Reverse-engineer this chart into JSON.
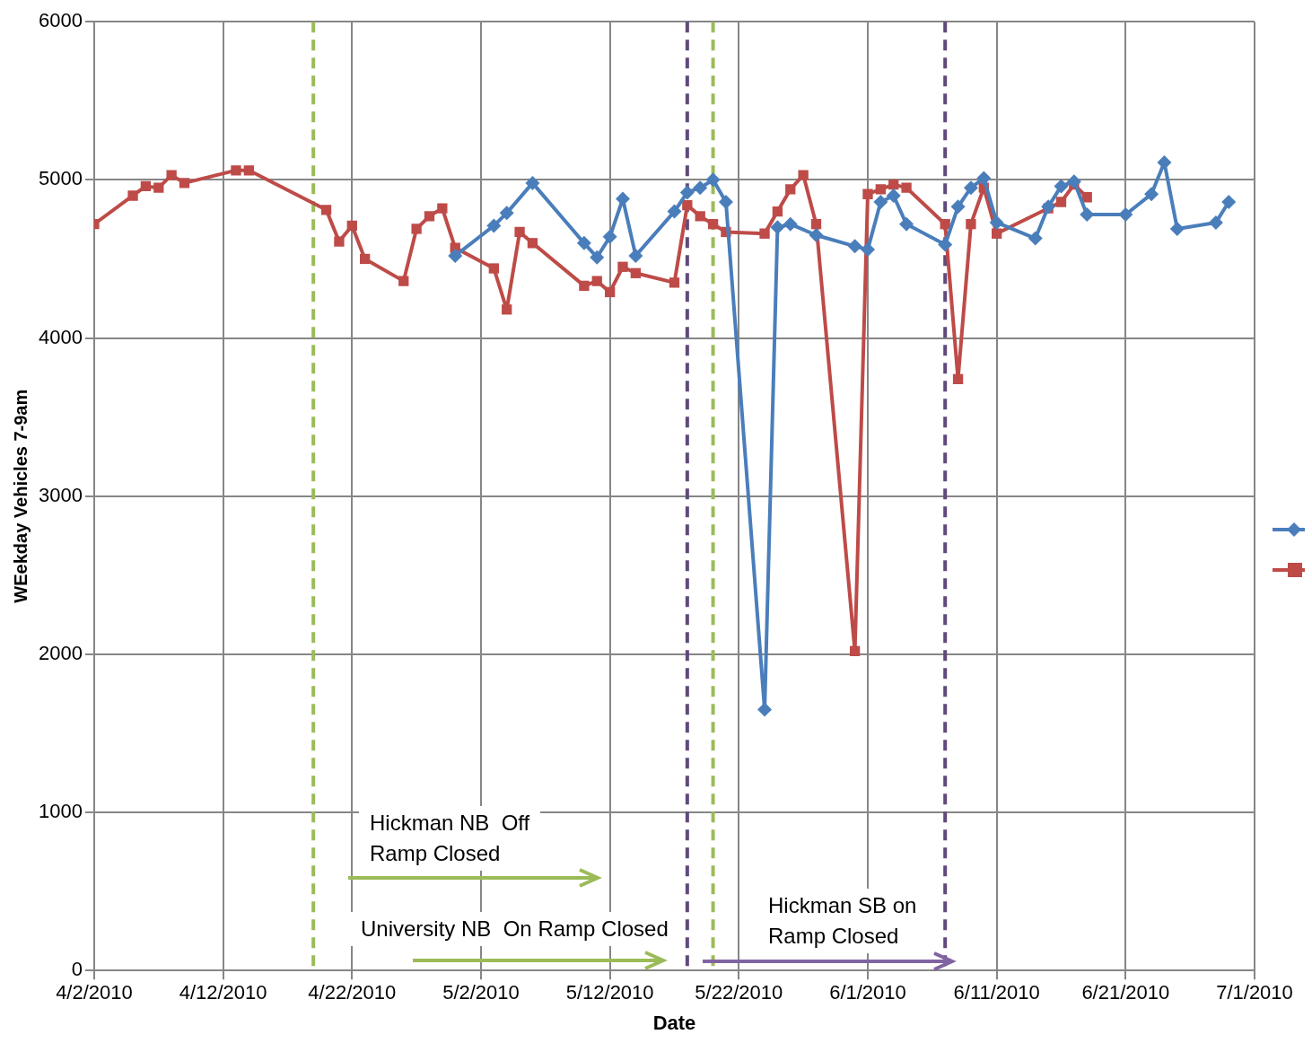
{
  "chart_data": {
    "type": "line",
    "ylabel": "WEekday Vehicles 7-9am",
    "xlabel": "Date",
    "xlim": [
      "2010-04-02",
      "2010-07-01"
    ],
    "xticks": [
      {
        "value": "2010-04-02",
        "label": "4/2/2010"
      },
      {
        "value": "2010-04-12",
        "label": "4/12/2010"
      },
      {
        "value": "2010-04-22",
        "label": "4/22/2010"
      },
      {
        "value": "2010-05-02",
        "label": "5/2/2010"
      },
      {
        "value": "2010-05-12",
        "label": "5/12/2010"
      },
      {
        "value": "2010-05-22",
        "label": "5/22/2010"
      },
      {
        "value": "2010-06-01",
        "label": "6/1/2010"
      },
      {
        "value": "2010-06-11",
        "label": "6/11/2010"
      },
      {
        "value": "2010-06-21",
        "label": "6/21/2010"
      },
      {
        "value": "2010-07-01",
        "label": "7/1/2010"
      }
    ],
    "ylim": [
      0,
      6000
    ],
    "yticks": [
      0,
      1000,
      2000,
      3000,
      4000,
      5000,
      6000
    ],
    "grid": true,
    "line_style": "solid",
    "series": [
      {
        "color": "#4a7ebb",
        "marker": "diamond",
        "x": [
          "2010-04-30",
          "2010-05-03",
          "2010-05-04",
          "2010-05-06",
          "2010-05-10",
          "2010-05-11",
          "2010-05-12",
          "2010-05-13",
          "2010-05-14",
          "2010-05-17",
          "2010-05-18",
          "2010-05-19",
          "2010-05-20",
          "2010-05-21",
          "2010-05-24",
          "2010-05-25",
          "2010-05-26",
          "2010-05-28",
          "2010-05-31",
          "2010-06-01",
          "2010-06-02",
          "2010-06-03",
          "2010-06-04",
          "2010-06-07",
          "2010-06-08",
          "2010-06-09",
          "2010-06-10",
          "2010-06-11",
          "2010-06-14",
          "2010-06-15",
          "2010-06-16",
          "2010-06-17",
          "2010-06-18",
          "2010-06-21",
          "2010-06-23",
          "2010-06-24",
          "2010-06-25",
          "2010-06-28",
          "2010-06-29"
        ],
        "values": [
          4520,
          4710,
          4790,
          4980,
          4600,
          4510,
          4640,
          4880,
          4520,
          4800,
          4920,
          4950,
          5000,
          4860,
          1650,
          4700,
          4720,
          4650,
          4580,
          4560,
          4860,
          4900,
          4720,
          4590,
          4830,
          4950,
          5010,
          4730,
          4630,
          4830,
          4960,
          4990,
          4780,
          4780,
          4910,
          5110,
          4690,
          4730,
          4860
        ]
      },
      {
        "color": "#be4b48",
        "marker": "square",
        "x": [
          "2010-04-02",
          "2010-04-05",
          "2010-04-06",
          "2010-04-07",
          "2010-04-08",
          "2010-04-09",
          "2010-04-13",
          "2010-04-14",
          "2010-04-20",
          "2010-04-21",
          "2010-04-22",
          "2010-04-23",
          "2010-04-26",
          "2010-04-27",
          "2010-04-28",
          "2010-04-29",
          "2010-04-30",
          "2010-05-03",
          "2010-05-04",
          "2010-05-05",
          "2010-05-06",
          "2010-05-10",
          "2010-05-11",
          "2010-05-12",
          "2010-05-13",
          "2010-05-14",
          "2010-05-17",
          "2010-05-18",
          "2010-05-19",
          "2010-05-20",
          "2010-05-21",
          "2010-05-24",
          "2010-05-25",
          "2010-05-26",
          "2010-05-27",
          "2010-05-28",
          "2010-05-31",
          "2010-06-01",
          "2010-06-02",
          "2010-06-03",
          "2010-06-04",
          "2010-06-07",
          "2010-06-08",
          "2010-06-09",
          "2010-06-10",
          "2010-06-11",
          "2010-06-15",
          "2010-06-16",
          "2010-06-17",
          "2010-06-18"
        ],
        "values": [
          4720,
          4900,
          4960,
          4950,
          5030,
          4980,
          5060,
          5060,
          4810,
          4610,
          4710,
          4500,
          4360,
          4690,
          4770,
          4820,
          4570,
          4440,
          4180,
          4670,
          4600,
          4330,
          4360,
          4290,
          4450,
          4410,
          4350,
          4840,
          4770,
          4720,
          4670,
          4660,
          4800,
          4940,
          5030,
          4720,
          2020,
          4910,
          4940,
          4970,
          4950,
          4720,
          3740,
          4720,
          4950,
          4660,
          4820,
          4860,
          4970,
          4890
        ]
      }
    ],
    "ref_lines": [
      {
        "axis": "x",
        "value": "2010-04-19",
        "color": "#9bbb59",
        "line_style": "dashed"
      },
      {
        "axis": "x",
        "value": "2010-05-18",
        "color": "#604a7b",
        "line_style": "dashed"
      },
      {
        "axis": "x",
        "value": "2010-05-20",
        "color": "#9bbb59",
        "line_style": "dashed"
      },
      {
        "axis": "x",
        "value": "2010-06-07",
        "color": "#604a7b",
        "line_style": "dashed"
      }
    ],
    "annotations": [
      "Hickman NB  Off\nRamp Closed",
      "University NB  On Ramp Closed",
      "Hickman SB on\nRamp Closed"
    ]
  }
}
